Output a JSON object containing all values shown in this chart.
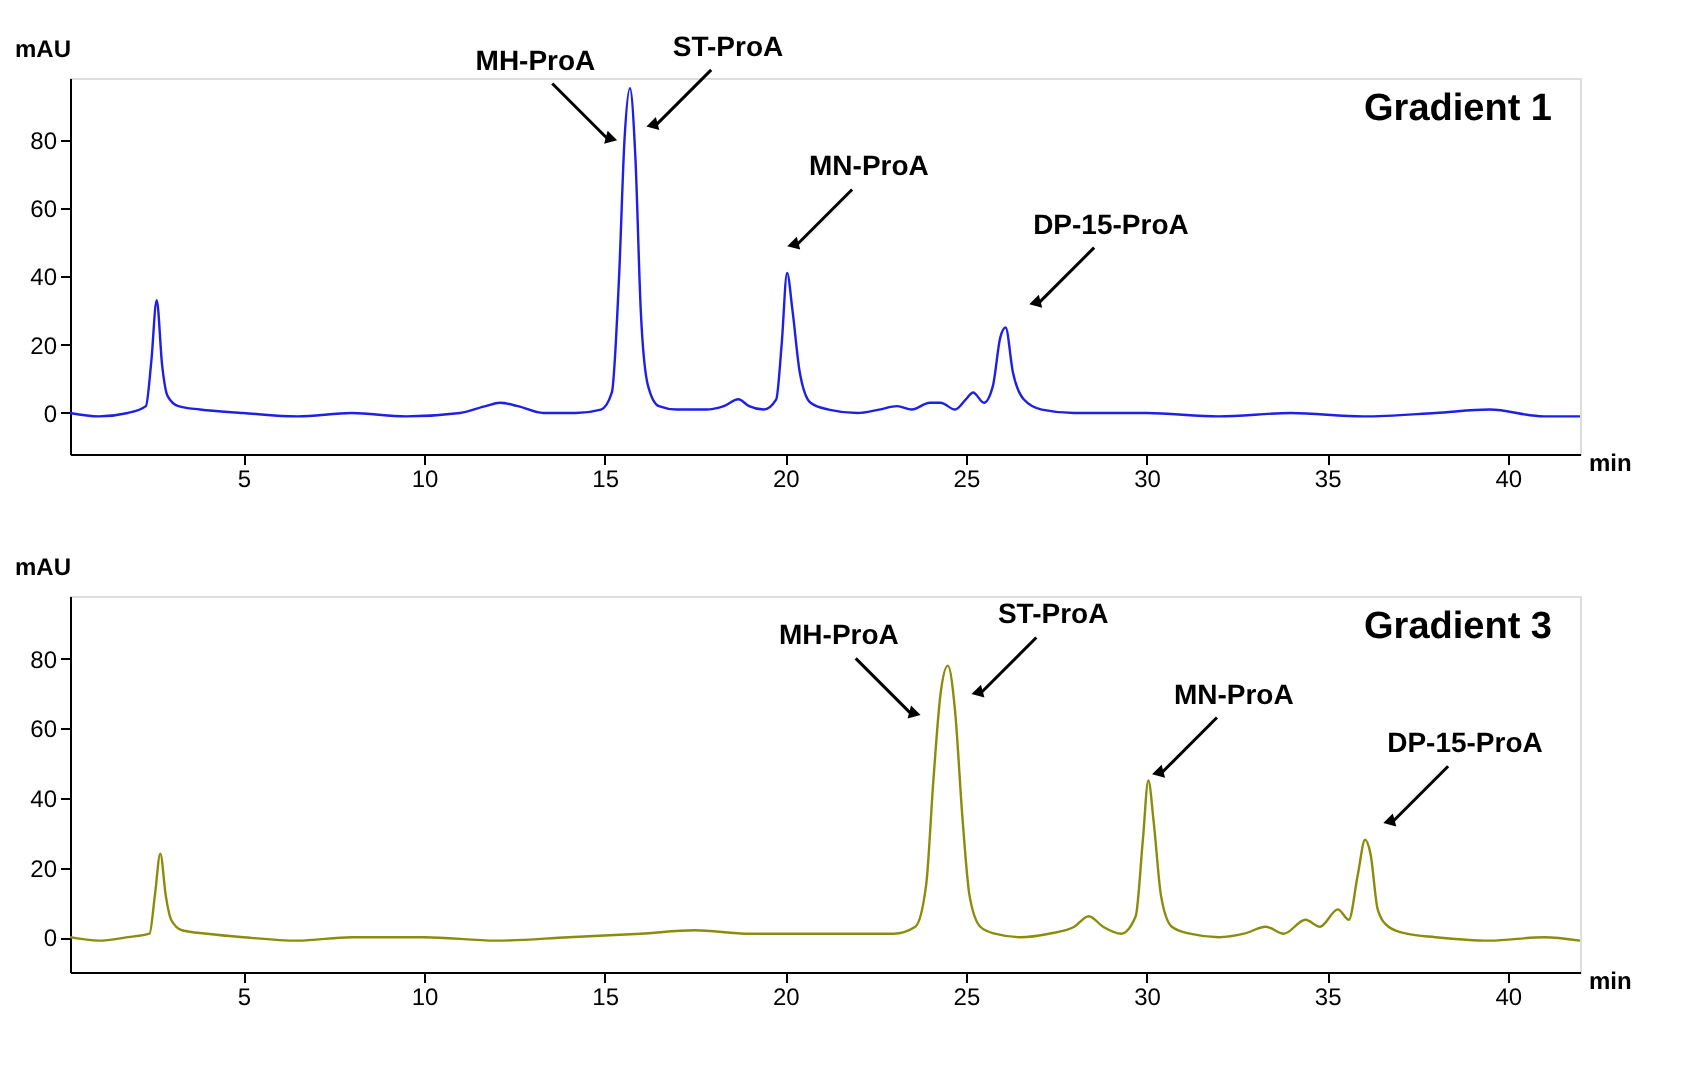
{
  "chart_data": [
    {
      "type": "line",
      "title": "Gradient 1",
      "xlabel": "min",
      "ylabel": "mAU",
      "xlim": [
        0.2,
        42
      ],
      "xticks": [
        5,
        10,
        15,
        20,
        25,
        30,
        35,
        40
      ],
      "ylim": [
        -12,
        98
      ],
      "yticks": [
        0,
        20,
        40,
        60,
        80
      ],
      "grid": false,
      "x": [
        0.2,
        1.0,
        1.8,
        2.3,
        2.45,
        2.6,
        2.75,
        2.9,
        3.2,
        3.8,
        5,
        6.5,
        8,
        9.5,
        11,
        11.7,
        12.1,
        12.6,
        13.3,
        14.2,
        14.9,
        15.2,
        15.4,
        15.55,
        15.7,
        15.85,
        16.0,
        16.2,
        16.5,
        17.0,
        17.8,
        18.3,
        18.7,
        19.0,
        19.4,
        19.75,
        19.9,
        20.05,
        20.2,
        20.4,
        20.7,
        21.2,
        22.0,
        22.6,
        23.1,
        23.5,
        24.0,
        24.3,
        24.7,
        25.0,
        25.2,
        25.5,
        25.75,
        25.95,
        26.1,
        26.3,
        26.6,
        27.1,
        28,
        30,
        32,
        34,
        36,
        38,
        39.5,
        41,
        42
      ],
      "series": [
        {
          "color": "#1f1fe6",
          "line_style": "solid",
          "marker": "none",
          "values": [
            0,
            -1,
            0,
            2,
            15,
            33,
            14,
            5,
            2,
            1,
            0,
            -1,
            0,
            -1,
            0,
            2,
            3,
            2,
            0,
            0,
            1,
            6,
            40,
            80,
            95,
            75,
            30,
            8,
            2,
            1,
            1,
            2,
            4,
            2,
            1,
            4,
            20,
            41,
            30,
            12,
            3,
            1,
            0,
            1,
            2,
            1,
            3,
            3,
            1,
            4,
            6,
            3,
            8,
            22,
            25,
            12,
            4,
            1,
            0,
            0,
            -1,
            0,
            -1,
            0,
            1,
            -1,
            -1
          ]
        }
      ],
      "annotations": [
        {
          "text": "MH-ProA",
          "x": 15.1,
          "y": 80
        },
        {
          "text": "ST-ProA",
          "x": 16.4,
          "y": 84
        },
        {
          "text": "MN-ProA",
          "x": 20.3,
          "y": 49
        },
        {
          "text": "DP-15-ProA",
          "x": 27.0,
          "y": 32
        }
      ]
    },
    {
      "type": "line",
      "title": "Gradient 3",
      "xlabel": "min",
      "ylabel": "mAU",
      "xlim": [
        0.2,
        42
      ],
      "xticks": [
        5,
        10,
        15,
        20,
        25,
        30,
        35,
        40
      ],
      "ylim": [
        -10,
        98
      ],
      "yticks": [
        0,
        20,
        40,
        60,
        80
      ],
      "grid": false,
      "x": [
        0.2,
        1.0,
        1.8,
        2.4,
        2.55,
        2.7,
        2.85,
        3.0,
        3.3,
        4.0,
        5,
        6.5,
        8,
        10,
        12,
        14,
        16,
        17.5,
        19,
        21,
        23,
        23.6,
        23.9,
        24.1,
        24.3,
        24.5,
        24.7,
        24.9,
        25.1,
        25.4,
        25.8,
        26.5,
        27.3,
        28.0,
        28.4,
        28.8,
        29.3,
        29.7,
        29.9,
        30.05,
        30.2,
        30.4,
        30.7,
        31.2,
        32.0,
        32.7,
        33.3,
        33.8,
        34.4,
        34.8,
        35.3,
        35.6,
        35.85,
        36.05,
        36.2,
        36.4,
        36.7,
        37.2,
        38,
        39.5,
        41,
        42
      ],
      "series": [
        {
          "color": "#8c8c0c",
          "line_style": "solid",
          "marker": "none",
          "values": [
            0,
            -1,
            0,
            1,
            12,
            24,
            12,
            5,
            2,
            1,
            0,
            -1,
            0,
            0,
            -1,
            0,
            1,
            2,
            1,
            1,
            1,
            3,
            15,
            45,
            70,
            78,
            65,
            35,
            12,
            3,
            1,
            0,
            1,
            3,
            6,
            3,
            1,
            6,
            28,
            45,
            33,
            12,
            3,
            1,
            0,
            1,
            3,
            1,
            5,
            3,
            8,
            5,
            18,
            28,
            24,
            8,
            3,
            1,
            0,
            -1,
            0,
            -1
          ]
        }
      ],
      "annotations": [
        {
          "text": "MH-ProA",
          "x": 23.5,
          "y": 64
        },
        {
          "text": "ST-ProA",
          "x": 25.4,
          "y": 70
        },
        {
          "text": "MN-ProA",
          "x": 30.4,
          "y": 47
        },
        {
          "text": "DP-15-ProA",
          "x": 36.8,
          "y": 33
        }
      ]
    }
  ]
}
